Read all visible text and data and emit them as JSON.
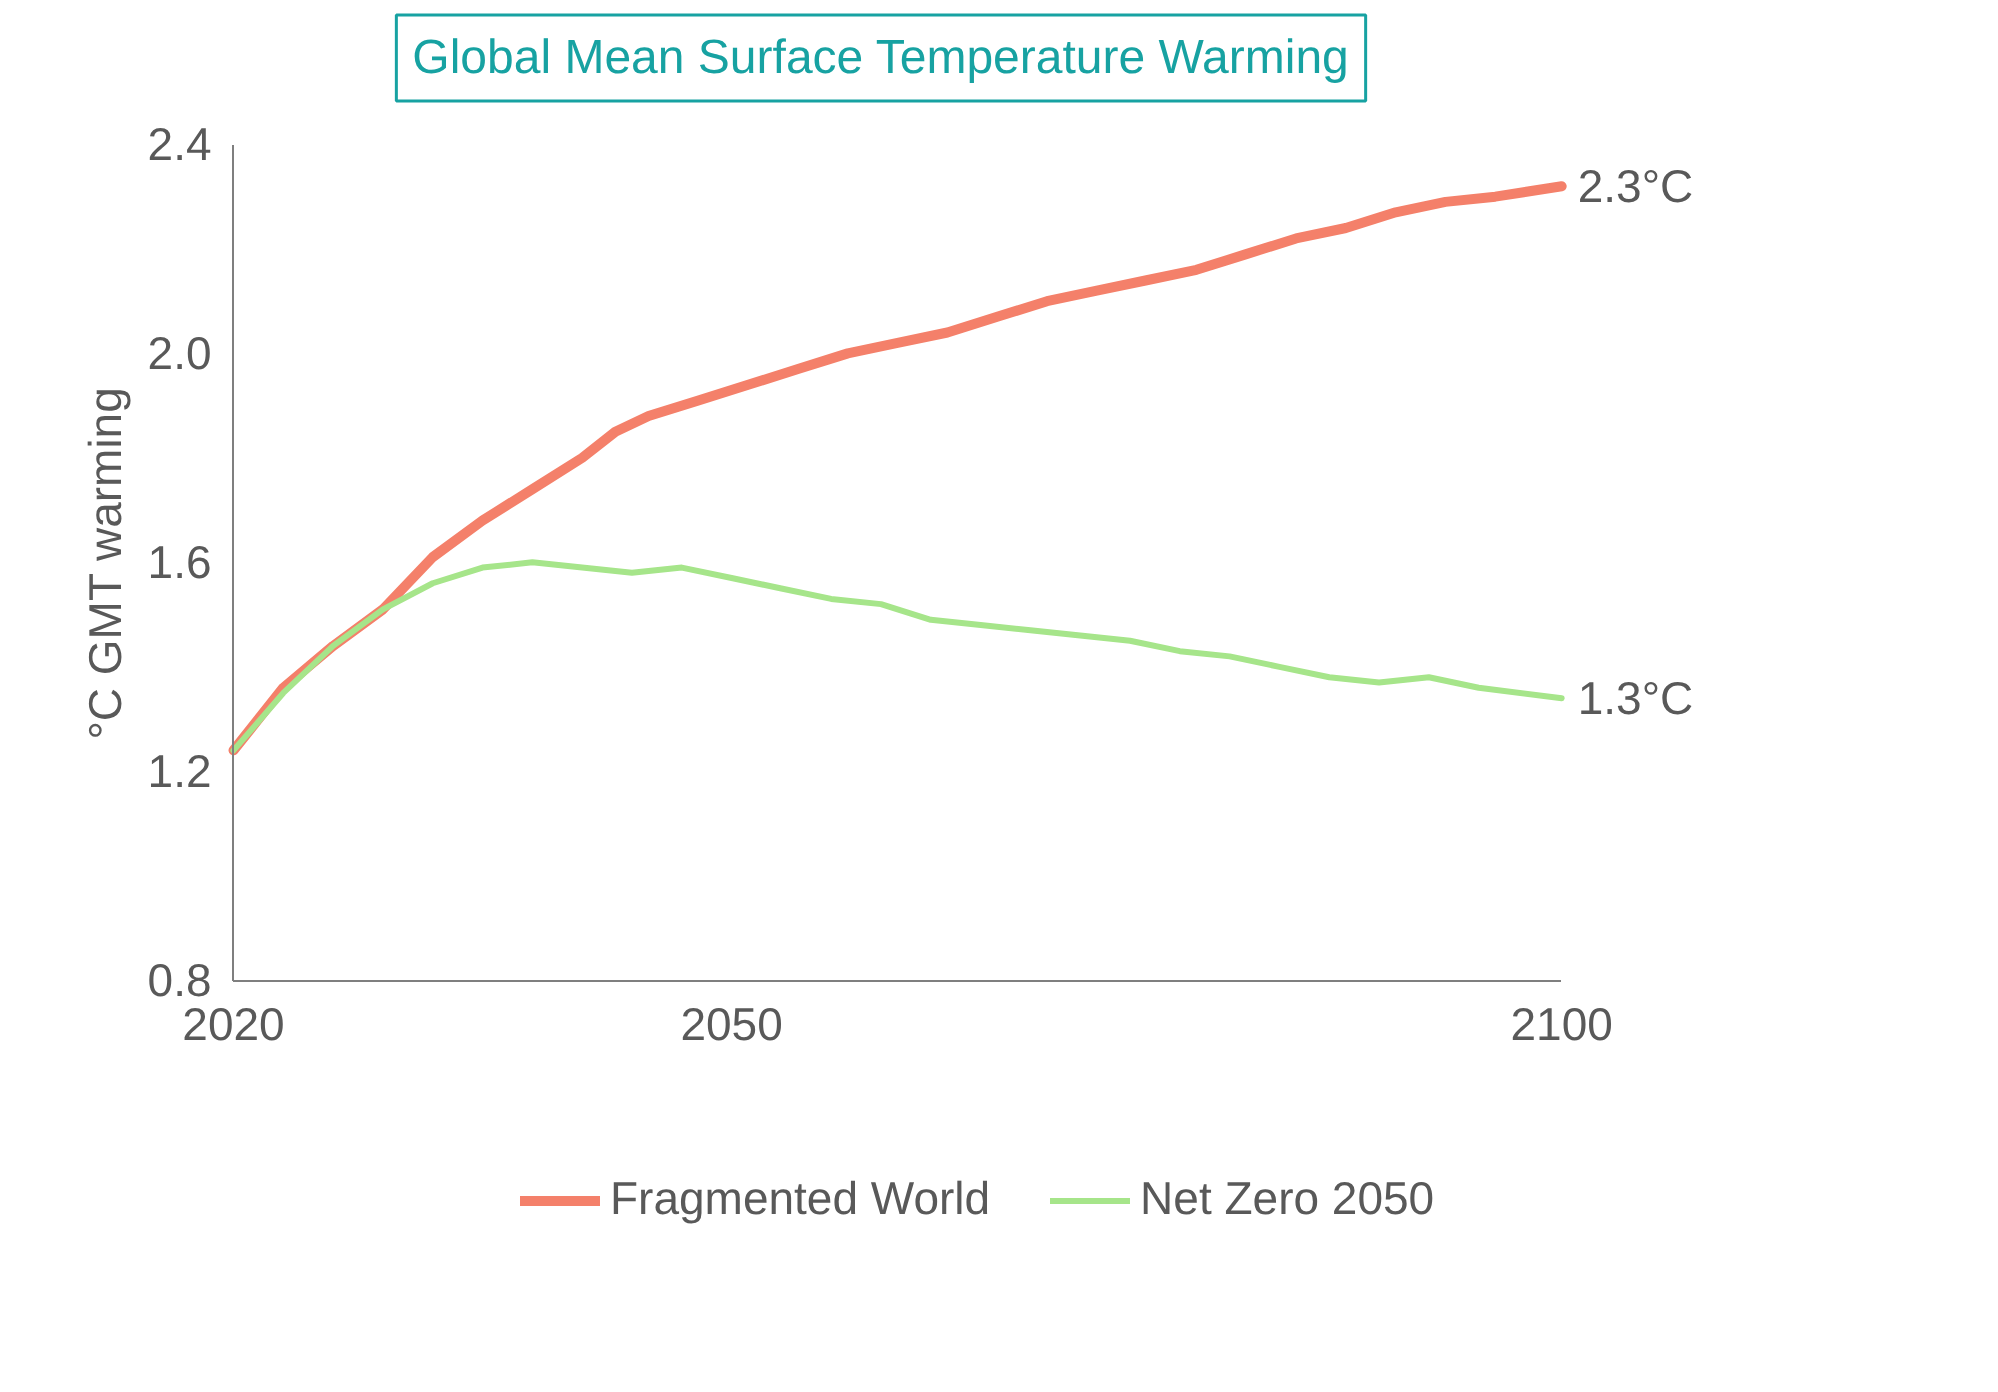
{
  "chart_data": {
    "type": "line",
    "title": "Global Mean Surface Temperature Warming",
    "ylabel": "°C GMT warming",
    "xlim": [
      2020,
      2100
    ],
    "xticks": [
      2020,
      2050,
      2100
    ],
    "ylim": [
      0.8,
      2.4
    ],
    "yticks": [
      {
        "value": 0.8,
        "label": "0.8"
      },
      {
        "value": 1.2,
        "label": "1.2"
      },
      {
        "value": 1.6,
        "label": "1.6"
      },
      {
        "value": 2.0,
        "label": "2.0"
      },
      {
        "value": 2.4,
        "label": "2.4"
      }
    ],
    "grid": false,
    "legend": "bottom",
    "series": [
      {
        "name": "Fragmented World",
        "color": "#f4806a",
        "x": [
          2020,
          2023,
          2026,
          2029,
          2032,
          2035,
          2038,
          2041,
          2043,
          2045,
          2048,
          2051,
          2054,
          2057,
          2060,
          2063,
          2066,
          2069,
          2072,
          2075,
          2078,
          2081,
          2084,
          2087,
          2090,
          2093,
          2096,
          2100
        ],
        "values": [
          1.24,
          1.36,
          1.44,
          1.51,
          1.61,
          1.68,
          1.74,
          1.8,
          1.85,
          1.88,
          1.91,
          1.94,
          1.97,
          2.0,
          2.02,
          2.04,
          2.07,
          2.1,
          2.12,
          2.14,
          2.16,
          2.19,
          2.22,
          2.24,
          2.27,
          2.29,
          2.3,
          2.32
        ]
      },
      {
        "name": "Net Zero 2050",
        "color": "#a6e58a",
        "x": [
          2020,
          2023,
          2026,
          2029,
          2032,
          2035,
          2038,
          2041,
          2044,
          2047,
          2050,
          2053,
          2056,
          2059,
          2062,
          2065,
          2068,
          2071,
          2074,
          2077,
          2080,
          2083,
          2086,
          2089,
          2092,
          2095,
          2100
        ],
        "values": [
          1.24,
          1.35,
          1.44,
          1.51,
          1.56,
          1.59,
          1.6,
          1.59,
          1.58,
          1.59,
          1.57,
          1.55,
          1.53,
          1.52,
          1.49,
          1.48,
          1.47,
          1.46,
          1.45,
          1.43,
          1.42,
          1.4,
          1.38,
          1.37,
          1.38,
          1.36,
          1.34
        ]
      }
    ],
    "annotations": [
      {
        "text": "2.3°C",
        "x": 2100,
        "y": 2.32
      },
      {
        "text": "1.3°C",
        "x": 2100,
        "y": 1.34
      }
    ]
  }
}
